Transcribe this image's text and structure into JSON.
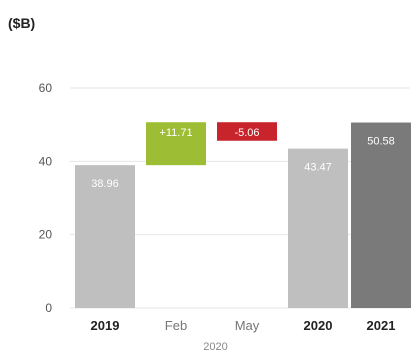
{
  "chart_data": {
    "type": "bar",
    "subtype": "waterfall",
    "unit_label": "($B)",
    "categories": [
      {
        "label": "2019",
        "kind": "total",
        "value": 38.96,
        "label_text": "38.96",
        "color": "#bfbfbf",
        "bold": true
      },
      {
        "label": "Feb",
        "kind": "delta",
        "value": 11.71,
        "label_text": "+11.71",
        "color": "#9dbe34",
        "bold": false
      },
      {
        "label": "May",
        "kind": "delta",
        "value": -5.06,
        "label_text": "-5.06",
        "color": "#c8242b",
        "bold": false
      },
      {
        "label": "2020",
        "kind": "total",
        "value": 43.47,
        "label_text": "43.47",
        "color": "#bfbfbf",
        "bold": true
      },
      {
        "label": "2021",
        "kind": "total",
        "value": 50.58,
        "label_text": "50.58",
        "color": "#7a7a7a",
        "bold": true
      }
    ],
    "group_label": "2020",
    "y_ticks": [
      0,
      20,
      40,
      60
    ],
    "ylim": [
      0,
      60
    ],
    "grid": true
  }
}
